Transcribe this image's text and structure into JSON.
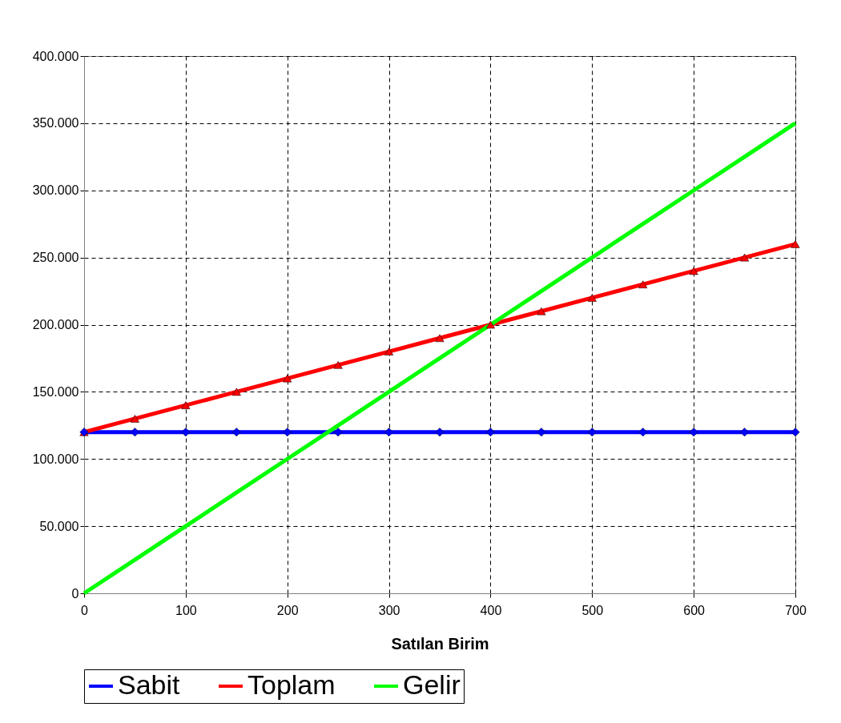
{
  "chart_data": {
    "type": "line",
    "xlabel": "Satılan Birim",
    "x": [
      0,
      50,
      100,
      150,
      200,
      250,
      300,
      350,
      400,
      450,
      500,
      550,
      600,
      650,
      700
    ],
    "series": [
      {
        "name": "Sabit",
        "color": "#0000ff",
        "marker": "diamond",
        "values": [
          120000,
          120000,
          120000,
          120000,
          120000,
          120000,
          120000,
          120000,
          120000,
          120000,
          120000,
          120000,
          120000,
          120000,
          120000
        ]
      },
      {
        "name": "Toplam",
        "color": "#ff0000",
        "marker": "triangle",
        "values": [
          120000,
          130000,
          140000,
          150000,
          160000,
          170000,
          180000,
          190000,
          200000,
          210000,
          220000,
          230000,
          240000,
          250000,
          260000
        ]
      },
      {
        "name": "Gelir",
        "color": "#00ff00",
        "marker": "none",
        "values": [
          0,
          25000,
          50000,
          75000,
          100000,
          125000,
          150000,
          175000,
          200000,
          225000,
          250000,
          275000,
          300000,
          325000,
          350000
        ]
      }
    ],
    "xlim": [
      0,
      700
    ],
    "xticks": [
      0,
      100,
      200,
      300,
      400,
      500,
      600,
      700
    ],
    "ylim": [
      0,
      400000
    ],
    "yticks": [
      0,
      {
        "value": 50000,
        "label": "50.000"
      },
      {
        "value": 100000,
        "label": "100.000"
      },
      {
        "value": 150000,
        "label": "150.000"
      },
      {
        "value": 200000,
        "label": "200.000"
      },
      {
        "value": 250000,
        "label": "250.000"
      },
      {
        "value": 300000,
        "label": "300.000"
      },
      {
        "value": 350000,
        "label": "350.000"
      },
      {
        "value": 400000,
        "label": "400.000"
      }
    ],
    "grid": true,
    "legend": "bottom",
    "line_style": "solid"
  }
}
